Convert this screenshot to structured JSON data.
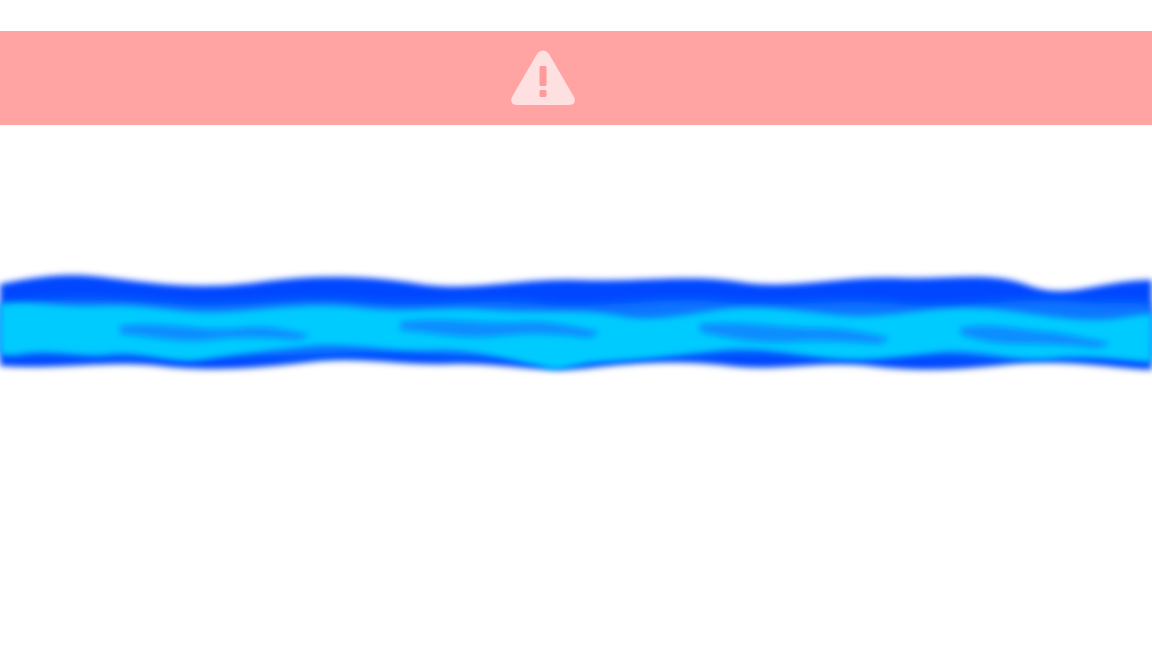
{
  "banner": {
    "icon": "warning-triangle-icon",
    "background_color": "#ffa3a3",
    "icon_color": "#ffe0e0",
    "mark_color": "#ff9a9a"
  },
  "strip": {
    "kind": "water-ripple-image",
    "colors": {
      "deep": "#0047ff",
      "mid": "#0a78ff",
      "light": "#00cbff"
    }
  },
  "page": {
    "background_color": "#ffffff"
  }
}
